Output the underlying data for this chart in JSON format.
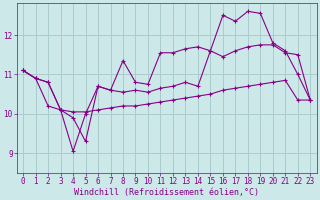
{
  "background_color": "#cce8e8",
  "line_color": "#880088",
  "grid_color": "#aacccc",
  "xlabel": "Windchill (Refroidissement éolien,°C)",
  "xlabel_fontsize": 6.0,
  "tick_fontsize": 5.5,
  "xlim": [
    -0.5,
    23.5
  ],
  "ylim": [
    8.5,
    12.8
  ],
  "yticks": [
    9,
    10,
    11,
    12
  ],
  "xticks": [
    0,
    1,
    2,
    3,
    4,
    5,
    6,
    7,
    8,
    9,
    10,
    11,
    12,
    13,
    14,
    15,
    16,
    17,
    18,
    19,
    20,
    21,
    22,
    23
  ],
  "series1_x": [
    0,
    1,
    2,
    3,
    4,
    5,
    6,
    7,
    8,
    9,
    10,
    11,
    12,
    13,
    14,
    15,
    16,
    17,
    18,
    19,
    20,
    21,
    22,
    23
  ],
  "series1_y": [
    11.1,
    10.9,
    10.8,
    10.1,
    9.9,
    9.3,
    10.7,
    10.6,
    10.55,
    10.6,
    10.55,
    10.65,
    10.7,
    10.8,
    10.7,
    11.6,
    11.45,
    11.6,
    11.7,
    11.75,
    11.75,
    11.55,
    11.5,
    10.35
  ],
  "series2_x": [
    0,
    1,
    2,
    3,
    4,
    5,
    6,
    7,
    8,
    9,
    10,
    11,
    12,
    13,
    14,
    15,
    16,
    17,
    18,
    19,
    20,
    21,
    22,
    23
  ],
  "series2_y": [
    11.1,
    10.9,
    10.2,
    10.1,
    9.05,
    10.0,
    10.7,
    10.6,
    11.35,
    10.8,
    10.75,
    11.55,
    11.55,
    11.65,
    11.7,
    11.6,
    12.5,
    12.35,
    12.6,
    12.55,
    11.8,
    11.6,
    11.0,
    10.35
  ],
  "series3_x": [
    0,
    1,
    2,
    3,
    4,
    5,
    6,
    7,
    8,
    9,
    10,
    11,
    12,
    13,
    14,
    15,
    16,
    17,
    18,
    19,
    20,
    21,
    22,
    23
  ],
  "series3_y": [
    11.1,
    10.9,
    10.8,
    10.1,
    10.05,
    10.05,
    10.1,
    10.15,
    10.2,
    10.2,
    10.25,
    10.3,
    10.35,
    10.4,
    10.45,
    10.5,
    10.6,
    10.65,
    10.7,
    10.75,
    10.8,
    10.85,
    10.35,
    10.35
  ]
}
